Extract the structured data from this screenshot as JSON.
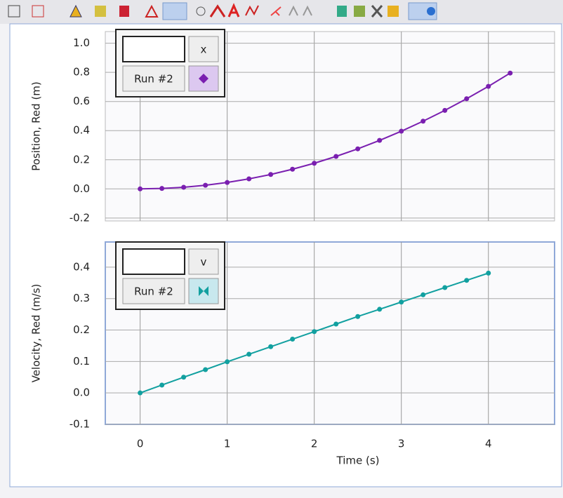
{
  "chart_data": [
    {
      "type": "line",
      "y_label": "Position, Red (m)",
      "legend": {
        "header": "x",
        "run": "Run #2"
      },
      "x": [
        0,
        0.25,
        0.5,
        0.75,
        1,
        1.25,
        1.5,
        1.75,
        2,
        2.25,
        2.5,
        2.75,
        3,
        3.25,
        3.5,
        3.75,
        4,
        4.25
      ],
      "series": [
        {
          "name": "Run #2",
          "color": "#7a1fb0",
          "values": [
            0,
            0.003,
            0.011,
            0.025,
            0.044,
            0.069,
            0.099,
            0.135,
            0.176,
            0.223,
            0.275,
            0.333,
            0.396,
            0.465,
            0.539,
            0.619,
            0.704,
            0.795
          ]
        }
      ],
      "xlim": [
        -0.4,
        4.76
      ],
      "ylim": [
        -0.22,
        1.08
      ],
      "yticks": [
        {
          "value": -0.2,
          "label": "-0.2"
        },
        {
          "value": 0,
          "label": "0.0"
        },
        0.2,
        0.4,
        0.6,
        0.8,
        {
          "value": 1,
          "label": "1.0"
        }
      ],
      "grid": true
    },
    {
      "type": "line",
      "y_label": "Velocity, Red (m/s)",
      "x_label": "Time (s)",
      "legend": {
        "header": "v",
        "run": "Run #2"
      },
      "x": [
        0,
        0.25,
        0.5,
        0.75,
        1,
        1.25,
        1.5,
        1.75,
        2,
        2.25,
        2.5,
        2.75,
        3,
        3.25,
        3.5,
        3.75,
        4
      ],
      "series": [
        {
          "name": "Run #2",
          "color": "#12a0a0",
          "values": [
            0,
            0.025,
            0.05,
            0.074,
            0.099,
            0.123,
            0.147,
            0.171,
            0.195,
            0.219,
            0.243,
            0.266,
            0.289,
            0.312,
            0.335,
            0.358,
            0.381
          ]
        }
      ],
      "xlim": [
        -0.4,
        4.76
      ],
      "ylim": [
        -0.1,
        0.48
      ],
      "xticks": [
        0,
        1,
        2,
        3,
        4
      ],
      "yticks": [
        {
          "value": -0.1,
          "label": "-0.1"
        },
        {
          "value": 0,
          "label": "0.0"
        },
        0.1,
        0.2,
        0.3,
        0.4
      ],
      "grid": true
    }
  ]
}
